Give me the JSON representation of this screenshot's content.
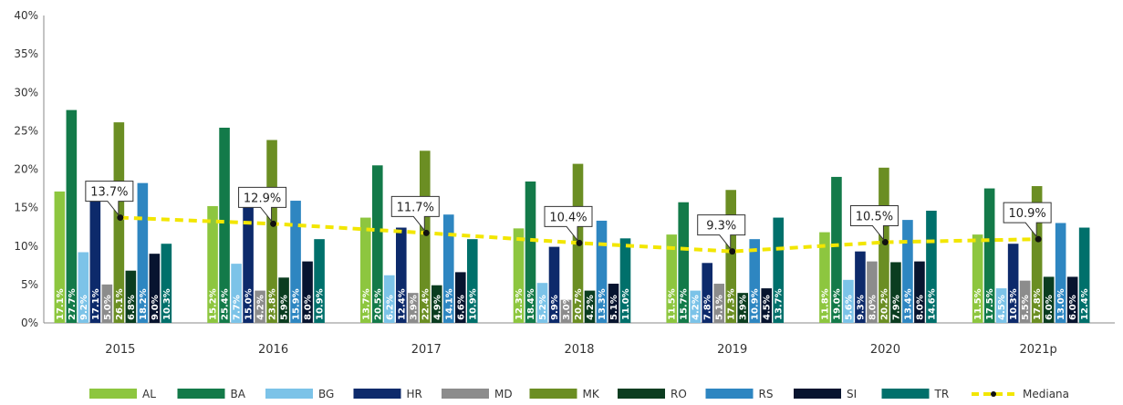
{
  "chart_data": {
    "type": "bar",
    "categories": [
      "2015",
      "2016",
      "2017",
      "2018",
      "2019",
      "2020",
      "2021p"
    ],
    "ylim": [
      0,
      40
    ],
    "yticks": [
      "0%",
      "5%",
      "10%",
      "15%",
      "20%",
      "25%",
      "30%",
      "35%",
      "40%"
    ],
    "grid": false,
    "legend_position": "bottom",
    "series": [
      {
        "name": "AL",
        "color": "#8DC63F",
        "values": [
          17.1,
          15.2,
          13.7,
          12.3,
          11.5,
          11.8,
          11.5
        ]
      },
      {
        "name": "BA",
        "color": "#137A49",
        "values": [
          27.7,
          25.4,
          20.5,
          18.4,
          15.7,
          19.0,
          17.5
        ]
      },
      {
        "name": "BG",
        "color": "#7CC3E8",
        "values": [
          9.2,
          7.7,
          6.2,
          5.2,
          4.2,
          5.6,
          4.5
        ]
      },
      {
        "name": "HR",
        "color": "#0D2A6B",
        "values": [
          17.1,
          15.0,
          12.4,
          9.9,
          7.8,
          9.3,
          10.3
        ]
      },
      {
        "name": "MD",
        "color": "#8C8C8C",
        "values": [
          5.0,
          4.2,
          3.9,
          3.0,
          5.1,
          8.0,
          5.5
        ]
      },
      {
        "name": "MK",
        "color": "#6B8E23",
        "values": [
          26.1,
          23.8,
          22.4,
          20.7,
          17.3,
          20.2,
          17.8
        ]
      },
      {
        "name": "RO",
        "color": "#0B3D20",
        "values": [
          6.8,
          5.9,
          4.9,
          4.2,
          3.9,
          7.9,
          6.0
        ]
      },
      {
        "name": "RS",
        "color": "#2E86C1",
        "values": [
          18.2,
          15.9,
          14.1,
          13.3,
          10.9,
          13.4,
          13.0
        ]
      },
      {
        "name": "SI",
        "color": "#07142F",
        "values": [
          9.0,
          8.0,
          6.6,
          5.1,
          4.5,
          8.0,
          6.0
        ]
      },
      {
        "name": "TR",
        "color": "#00706B",
        "values": [
          10.3,
          10.9,
          10.9,
          11.0,
          13.7,
          14.6,
          12.4
        ]
      }
    ],
    "bar_labels": [
      [
        "17.1%",
        "27.7%",
        "9.2%",
        "17.1%",
        "5.0%",
        "26.1%",
        "6.8%",
        "18.2%",
        "9.0%",
        "10.3%"
      ],
      [
        "15.2%",
        "25.4%",
        "7.7%",
        "15.0%",
        "4.2%",
        "23.8%",
        "5.9%",
        "15.9%",
        "8.0%",
        "10.9%"
      ],
      [
        "13.7%",
        "20.5%",
        "6.2%",
        "12.4%",
        "3.9%",
        "22.4%",
        "4.9%",
        "14.1%",
        "6.6%",
        "10.9%"
      ],
      [
        "12.3%",
        "18.4%",
        "5.2%",
        "9.9%",
        "3.0%",
        "20.7%",
        "4.2%",
        "13.3%",
        "5.1%",
        "11.0%"
      ],
      [
        "11.5%",
        "15.7%",
        "4.2%",
        "7.8%",
        "5.1%",
        "17.3%",
        "3.9%",
        "10.9%",
        "4.5%",
        "13.7%"
      ],
      [
        "11.8%",
        "19.0%",
        "5.6%",
        "9.3%",
        "8.0%",
        "20.2%",
        "7.9%",
        "13.4%",
        "8.0%",
        "14.6%"
      ],
      [
        "11.5%",
        "17.5%",
        "4.5%",
        "10.3%",
        "5.5%",
        "17.8%",
        "6.0%",
        "13.0%",
        "6.0%",
        "12.4%"
      ]
    ],
    "median": {
      "name": "Mediana",
      "color": "#F2E600",
      "values": [
        13.7,
        12.9,
        11.7,
        10.4,
        9.3,
        10.5,
        10.9
      ],
      "labels": [
        "13.7%",
        "12.9%",
        "11.7%",
        "10.4%",
        "9.3%",
        "10.5%",
        "10.9%"
      ]
    }
  }
}
